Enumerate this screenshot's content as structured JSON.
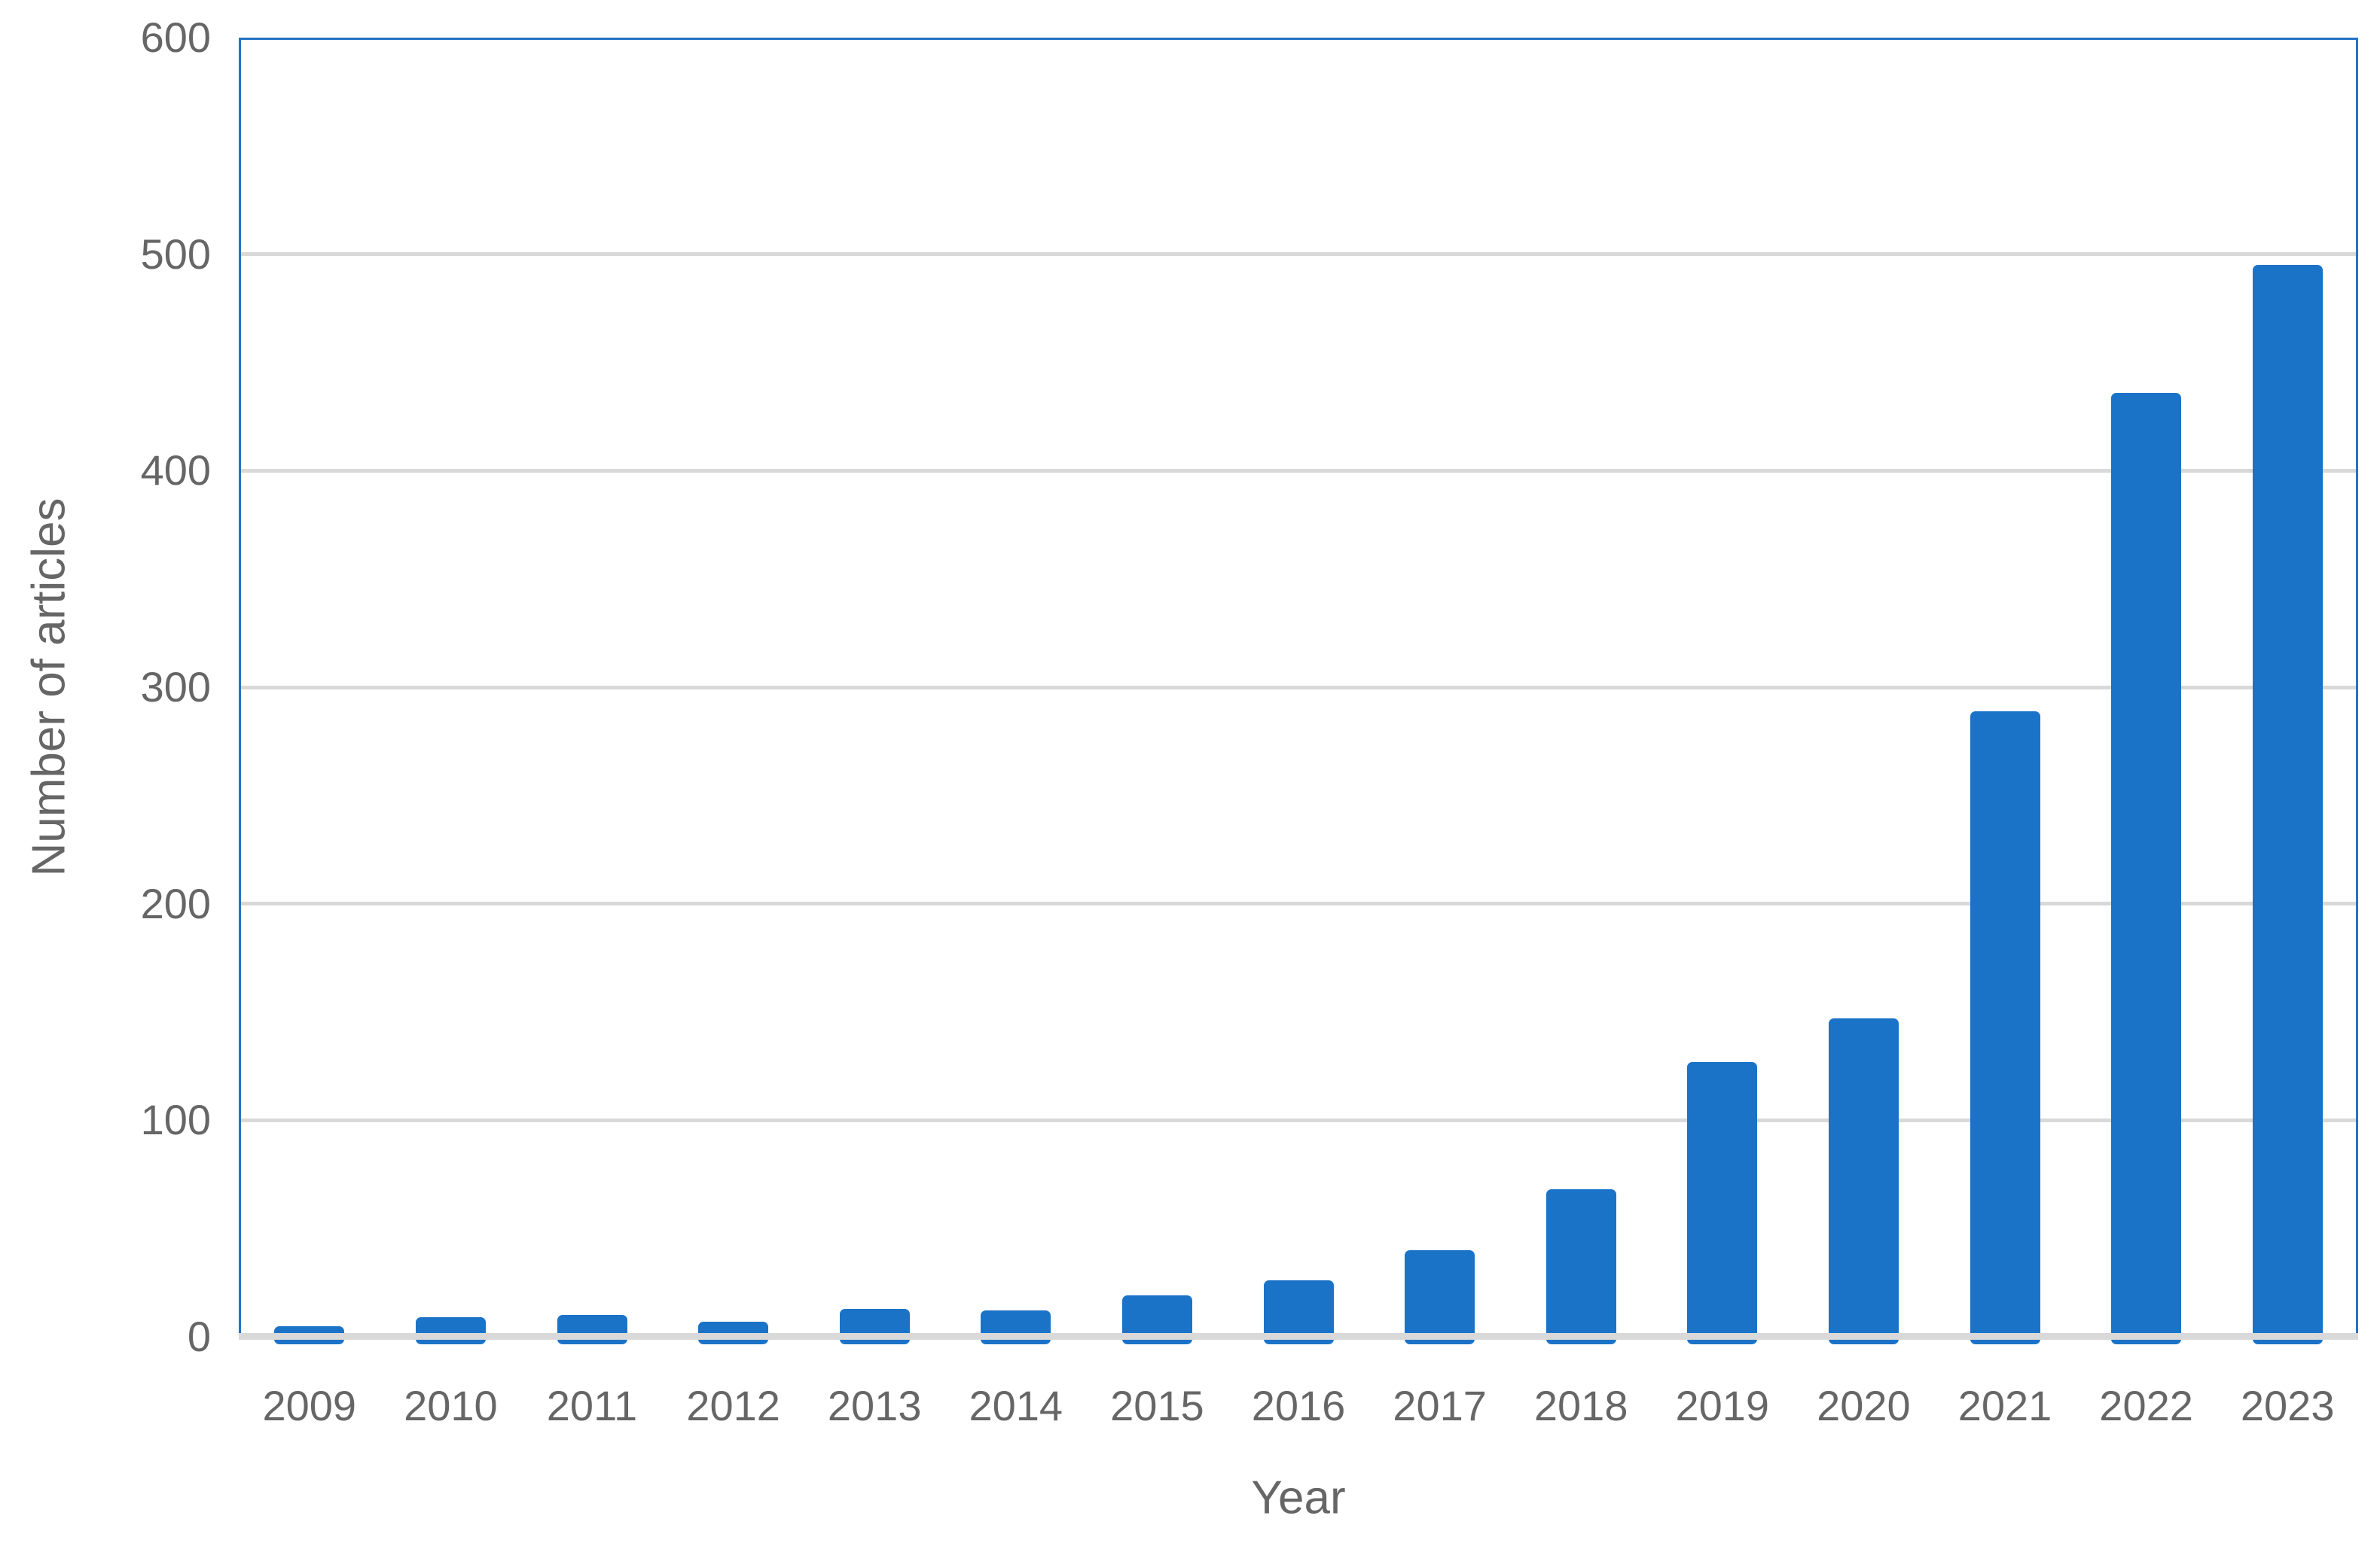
{
  "chart_data": {
    "type": "bar",
    "title": "",
    "xlabel": "Year",
    "ylabel": "Number of articles",
    "categories": [
      "2009",
      "2010",
      "2011",
      "2012",
      "2013",
      "2014",
      "2015",
      "2016",
      "2017",
      "2018",
      "2019",
      "2020",
      "2021",
      "2022",
      "2023"
    ],
    "values": [
      5,
      9,
      10,
      7,
      13,
      12,
      19,
      26,
      40,
      68,
      127,
      147,
      289,
      436,
      495
    ],
    "ylim": [
      0,
      600
    ],
    "yticks": [
      0,
      100,
      200,
      300,
      400,
      500,
      600
    ],
    "grid": true,
    "legend": false,
    "colors": {
      "bar": "#1B73C8",
      "gridline": "#D9D9D9",
      "plot_border": "#2573C4",
      "label": "#666666"
    }
  }
}
